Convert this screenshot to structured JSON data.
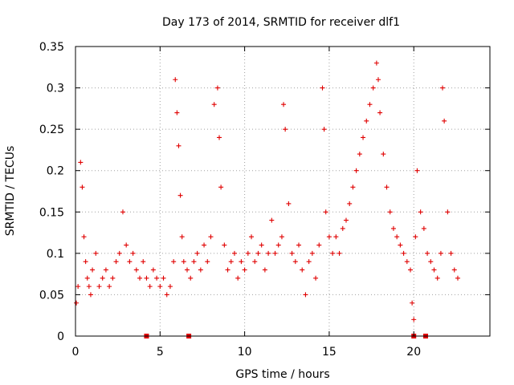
{
  "chart_data": {
    "type": "scatter",
    "title": "Day 173 of 2014, SRMTID for receiver dlf1",
    "xlabel": "GPS time / hours",
    "ylabel": "SRMTID / TECUs",
    "xlim": [
      0,
      24.5
    ],
    "ylim": [
      0,
      0.35
    ],
    "xticks": [
      0,
      5,
      10,
      15,
      20
    ],
    "xtick_labels": [
      "0",
      "5",
      "10",
      "15",
      "20"
    ],
    "yticks": [
      0,
      0.05,
      0.1,
      0.15,
      0.2,
      0.25,
      0.3,
      0.35
    ],
    "ytick_labels": [
      "0",
      "0.05",
      "0.1",
      "0.15",
      "0.2",
      "0.25",
      "0.3",
      "0.35"
    ],
    "grid": true,
    "marker": "+",
    "color": "#e00000",
    "series": [
      {
        "name": "SRMTID",
        "x": [
          0.05,
          0.15,
          0.3,
          0.4,
          0.5,
          0.6,
          0.7,
          0.8,
          0.9,
          1.0,
          1.2,
          1.4,
          1.6,
          1.8,
          2.0,
          2.2,
          2.4,
          2.6,
          2.8,
          3.0,
          3.2,
          3.4,
          3.6,
          3.8,
          4.0,
          4.2,
          4.4,
          4.6,
          4.8,
          5.0,
          5.2,
          5.4,
          5.6,
          5.8,
          5.9,
          6.0,
          6.1,
          6.2,
          6.3,
          6.4,
          6.6,
          6.8,
          7.0,
          7.2,
          7.4,
          7.6,
          7.8,
          8.0,
          8.2,
          8.4,
          8.5,
          8.6,
          8.8,
          9.0,
          9.2,
          9.4,
          9.6,
          9.8,
          10.0,
          10.2,
          10.4,
          10.6,
          10.8,
          11.0,
          11.2,
          11.4,
          11.6,
          11.8,
          12.0,
          12.2,
          12.3,
          12.4,
          12.6,
          12.8,
          13.0,
          13.2,
          13.4,
          13.6,
          13.8,
          14.0,
          14.2,
          14.4,
          14.6,
          14.7,
          14.8,
          15.0,
          15.2,
          15.4,
          15.6,
          15.8,
          16.0,
          16.2,
          16.4,
          16.6,
          16.8,
          17.0,
          17.2,
          17.4,
          17.6,
          17.8,
          17.9,
          18.0,
          18.2,
          18.4,
          18.6,
          18.8,
          19.0,
          19.2,
          19.4,
          19.6,
          19.8,
          19.9,
          20.0,
          20.1,
          20.2,
          20.4,
          20.6,
          20.8,
          21.0,
          21.2,
          21.4,
          21.6,
          21.7,
          21.8,
          22.0,
          22.2,
          22.4,
          22.6
        ],
        "y": [
          0.04,
          0.06,
          0.21,
          0.18,
          0.12,
          0.09,
          0.07,
          0.06,
          0.05,
          0.08,
          0.1,
          0.06,
          0.07,
          0.08,
          0.06,
          0.07,
          0.09,
          0.1,
          0.15,
          0.11,
          0.09,
          0.1,
          0.08,
          0.07,
          0.09,
          0.07,
          0.06,
          0.08,
          0.07,
          0.06,
          0.07,
          0.05,
          0.06,
          0.09,
          0.31,
          0.27,
          0.23,
          0.17,
          0.12,
          0.09,
          0.08,
          0.07,
          0.09,
          0.1,
          0.08,
          0.11,
          0.09,
          0.12,
          0.28,
          0.3,
          0.24,
          0.18,
          0.11,
          0.08,
          0.09,
          0.1,
          0.07,
          0.09,
          0.08,
          0.1,
          0.12,
          0.09,
          0.1,
          0.11,
          0.08,
          0.1,
          0.14,
          0.1,
          0.11,
          0.12,
          0.28,
          0.25,
          0.16,
          0.1,
          0.09,
          0.11,
          0.08,
          0.05,
          0.09,
          0.1,
          0.07,
          0.11,
          0.3,
          0.25,
          0.15,
          0.12,
          0.1,
          0.12,
          0.1,
          0.13,
          0.14,
          0.16,
          0.18,
          0.2,
          0.22,
          0.24,
          0.26,
          0.28,
          0.3,
          0.33,
          0.31,
          0.27,
          0.22,
          0.18,
          0.15,
          0.13,
          0.12,
          0.11,
          0.1,
          0.09,
          0.08,
          0.04,
          0.02,
          0.12,
          0.2,
          0.15,
          0.13,
          0.1,
          0.09,
          0.08,
          0.07,
          0.1,
          0.3,
          0.26,
          0.15,
          0.1,
          0.08,
          0.07
        ]
      }
    ],
    "gap_markers_x": [
      4.2,
      6.7,
      20.0,
      20.7
    ]
  }
}
